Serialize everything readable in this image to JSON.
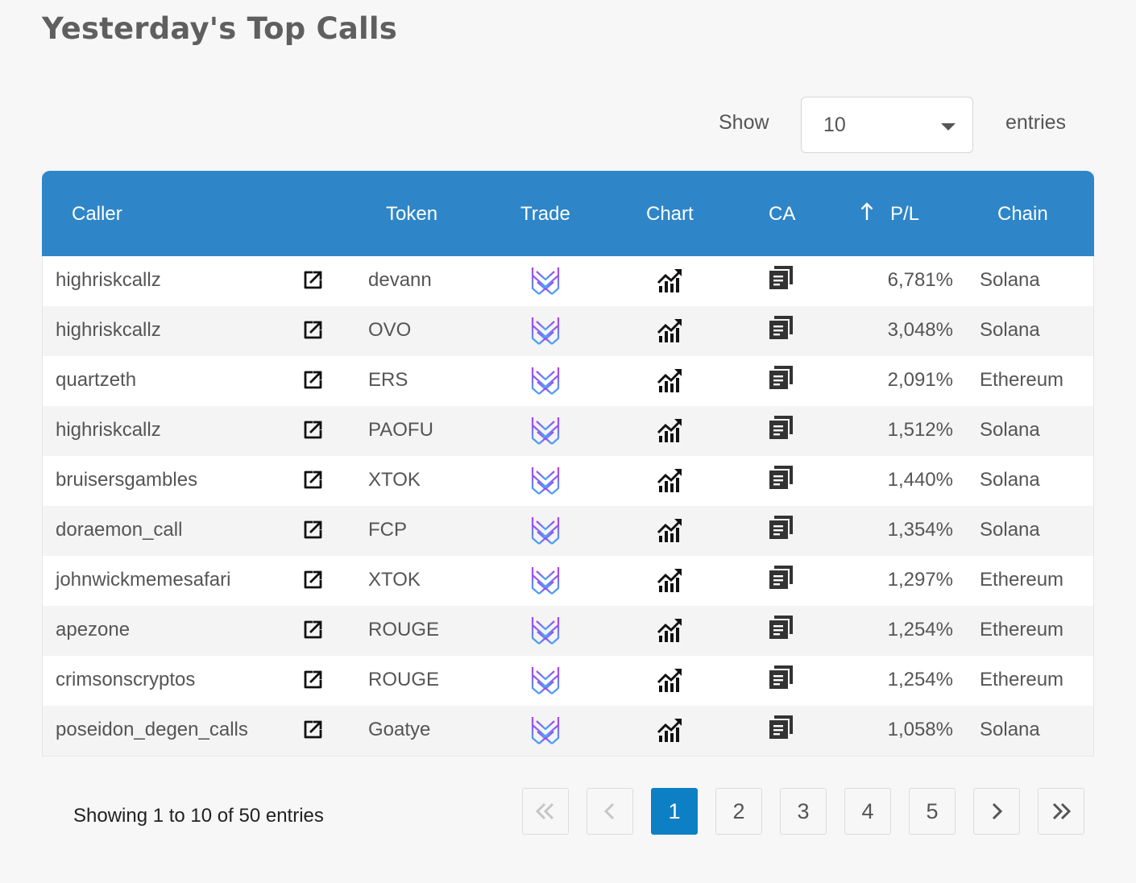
{
  "page": {
    "title": "Yesterday's Top Calls"
  },
  "length_menu": {
    "show_label": "Show",
    "selected": "10",
    "entries_label": "entries"
  },
  "table": {
    "columns": {
      "caller": "Caller",
      "token": "Token",
      "trade": "Trade",
      "chart": "Chart",
      "ca": "CA",
      "pl": "P/L",
      "chain": "Chain"
    },
    "sorted_column": "P/L",
    "rows": [
      {
        "caller": "highriskcallz",
        "token": "devann",
        "pl": "6,781%",
        "chain": "Solana"
      },
      {
        "caller": "highriskcallz",
        "token": "OVO",
        "pl": "3,048%",
        "chain": "Solana"
      },
      {
        "caller": "quartzeth",
        "token": "ERS",
        "pl": "2,091%",
        "chain": "Ethereum"
      },
      {
        "caller": "highriskcallz",
        "token": "PAOFU",
        "pl": "1,512%",
        "chain": "Solana"
      },
      {
        "caller": "bruisersgambles",
        "token": "XTOK",
        "pl": "1,440%",
        "chain": "Solana"
      },
      {
        "caller": "doraemon_call",
        "token": "FCP",
        "pl": "1,354%",
        "chain": "Solana"
      },
      {
        "caller": "johnwickmemesafari",
        "token": "XTOK",
        "pl": "1,297%",
        "chain": "Ethereum"
      },
      {
        "caller": "apezone",
        "token": "ROUGE",
        "pl": "1,254%",
        "chain": "Ethereum"
      },
      {
        "caller": "crimsonscryptos",
        "token": "ROUGE",
        "pl": "1,254%",
        "chain": "Ethereum"
      },
      {
        "caller": "poseidon_degen_calls",
        "token": "Goatye",
        "pl": "1,058%",
        "chain": "Solana"
      }
    ],
    "row_icons": {
      "caller_link": "external-link-icon",
      "trade": "trade-logo-icon",
      "chart": "chart-icon",
      "ca": "copy-icon"
    }
  },
  "footer": {
    "info": "Showing 1 to 10 of 50 entries"
  },
  "pagination": {
    "current": "1",
    "pages": [
      "1",
      "2",
      "3",
      "4",
      "5"
    ],
    "first_icon": "double-chevron-left-icon",
    "prev_icon": "chevron-left-icon",
    "next_icon": "chevron-right-icon",
    "last_icon": "double-chevron-right-icon"
  },
  "colors": {
    "header_bg": "#2e86c8",
    "active_page": "#0d80c5",
    "trade_logo_top": "#b13ff0",
    "trade_logo_bottom": "#3fa9f5"
  }
}
